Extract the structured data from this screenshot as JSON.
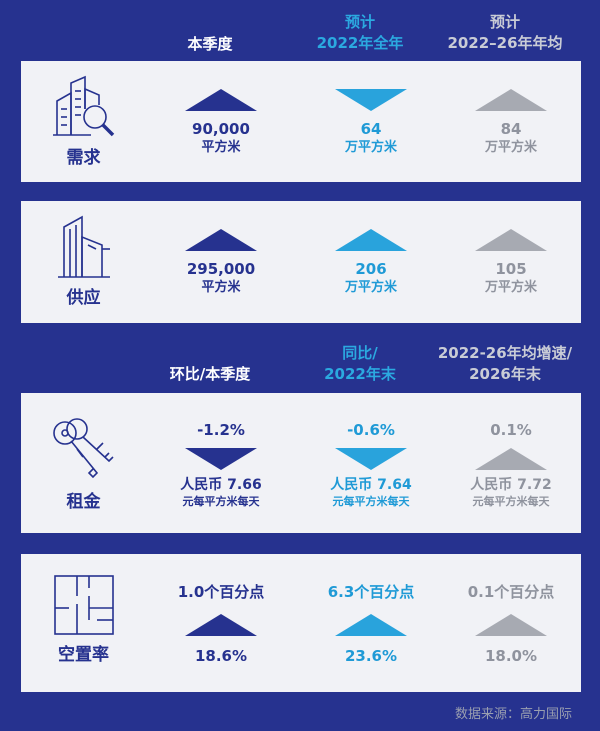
{
  "header1": {
    "col1": "本季度",
    "col2a": "预计",
    "col2b": "2022年全年",
    "col3a": "预计",
    "col3b": "2022–26年年均"
  },
  "header2": {
    "col1": "环比/本季度",
    "col2a": "同比/",
    "col2b": "2022年末",
    "col3a": "2022-26年均增速/",
    "col3b": "2026年末"
  },
  "demand": {
    "label": "需求",
    "icon": "building-search-icon",
    "c1": {
      "value": "90,000",
      "unit": "平方米",
      "direction": "up"
    },
    "c2": {
      "value": "64",
      "unit": "万平方米",
      "direction": "down"
    },
    "c3": {
      "value": "84",
      "unit": "万平方米",
      "direction": "up"
    }
  },
  "supply": {
    "label": "供应",
    "icon": "office-tower-icon",
    "c1": {
      "value": "295,000",
      "unit": "平方米",
      "direction": "up"
    },
    "c2": {
      "value": "206",
      "unit": "万平方米",
      "direction": "up"
    },
    "c3": {
      "value": "105",
      "unit": "万平方米",
      "direction": "up"
    }
  },
  "rent": {
    "label": "租金",
    "icon": "keys-icon",
    "c1": {
      "change": "-1.2%",
      "value": "人民币 7.66",
      "unit": "元每平方米每天",
      "direction": "down"
    },
    "c2": {
      "change": "-0.6%",
      "value": "人民币 7.64",
      "unit": "元每平方米每天",
      "direction": "down"
    },
    "c3": {
      "change": "0.1%",
      "value": "人民币 7.72",
      "unit": "元每平方米每天",
      "direction": "up"
    }
  },
  "vacancy": {
    "label": "空置率",
    "icon": "floor-plan-icon",
    "c1": {
      "change": "1.0个百分点",
      "value": "18.6%",
      "direction": "up"
    },
    "c2": {
      "change": "6.3个百分点",
      "value": "23.6%",
      "direction": "up"
    },
    "c3": {
      "change": "0.1个百分点",
      "value": "18.0%",
      "direction": "up"
    }
  },
  "colors": {
    "col1": "#26328f",
    "col2": "#29a3dc",
    "col3": "#a7aab2",
    "background": "#26328f",
    "panel": "#f1f2f6"
  },
  "source": "数据来源：高力国际"
}
